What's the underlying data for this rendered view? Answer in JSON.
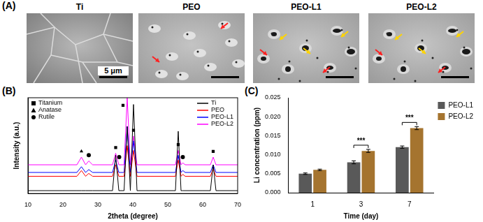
{
  "panel_a": {
    "title": "(A)",
    "images": [
      "Ti",
      "PEO",
      "PEO-L1",
      "PEO-L2"
    ],
    "scale_bar": "5 μm"
  },
  "chart_data": [
    {
      "type": "line",
      "title": "(B)",
      "x_label": "2theta (degree)",
      "y_label": "Intensity (a.u.)",
      "xlim": [
        10,
        70
      ],
      "xticks": [
        10,
        20,
        30,
        40,
        50,
        60,
        70
      ],
      "ylim": [
        0,
        100
      ],
      "tick_labels": "x",
      "grid": false,
      "legend": "top-right",
      "x": [
        10,
        15,
        20,
        24,
        25.3,
        26.5,
        27.4,
        28.5,
        33,
        34.2,
        35.1,
        36,
        37.5,
        38.4,
        39.3,
        40.2,
        41.2,
        45,
        50,
        52.2,
        53,
        53.8,
        54.3,
        55,
        60,
        62.2,
        63,
        63.8,
        65,
        70
      ],
      "series": [
        {
          "name": "Ti",
          "type": "line",
          "color": "#000000",
          "values": [
            3,
            3,
            3,
            3,
            3,
            3,
            3,
            3,
            3,
            3,
            40,
            3,
            3,
            70,
            3,
            93,
            3,
            3,
            3,
            3,
            65,
            3,
            3,
            3,
            3,
            3,
            30,
            3,
            3,
            3
          ]
        },
        {
          "name": "PEO",
          "type": "line",
          "color": "#ff0000",
          "values": [
            18,
            18,
            18,
            18,
            24,
            18,
            21,
            18,
            18,
            18,
            30,
            18,
            18,
            50,
            18,
            45,
            18,
            18,
            18,
            18,
            35,
            18,
            20,
            18,
            18,
            18,
            26,
            18,
            18,
            18
          ]
        },
        {
          "name": "PEO-L1",
          "type": "line",
          "color": "#0000ff",
          "values": [
            22,
            22,
            22,
            22,
            28,
            22,
            25,
            22,
            22,
            22,
            35,
            22,
            22,
            70,
            22,
            55,
            22,
            22,
            22,
            22,
            40,
            22,
            24,
            22,
            22,
            22,
            30,
            22,
            22,
            22
          ]
        },
        {
          "name": "PEO-L2",
          "type": "line",
          "color": "#ff00ff",
          "values": [
            30,
            30,
            30,
            30,
            38,
            30,
            34,
            30,
            30,
            30,
            42,
            30,
            30,
            100,
            30,
            60,
            30,
            30,
            30,
            30,
            45,
            30,
            32,
            30,
            30,
            30,
            38,
            30,
            30,
            30
          ]
        },
        {
          "name": "Titanium",
          "type": "scatter",
          "marker": "square",
          "color": "#000000",
          "x": [
            35.1,
            37.2,
            40.2,
            53,
            63
          ],
          "values": [
            48,
            92,
            66,
            51,
            44
          ]
        },
        {
          "name": "Anatase",
          "type": "scatter",
          "marker": "triangle",
          "color": "#000000",
          "x": [
            25.3
          ],
          "values": [
            44
          ]
        },
        {
          "name": "Rutile",
          "type": "scatter",
          "marker": "circle",
          "color": "#000000",
          "x": [
            27.4,
            36.1,
            54.3
          ],
          "values": [
            40,
            38,
            38
          ]
        }
      ]
    },
    {
      "type": "bar",
      "title": "(C)",
      "x_label": "Time (day)",
      "y_label": "Li concentration (ppm)",
      "categories": [
        "1",
        "3",
        "7"
      ],
      "ylim": [
        0,
        0.025
      ],
      "yticks": [
        {
          "value": 0,
          "label": "0.000"
        },
        {
          "value": 0.005,
          "label": "0.005"
        },
        {
          "value": 0.01,
          "label": "0.010"
        },
        {
          "value": 0.015,
          "label": "0.015"
        },
        {
          "value": 0.02,
          "label": "0.020"
        },
        {
          "value": 0.025,
          "label": "0.025"
        }
      ],
      "grid": false,
      "legend": "top-right",
      "series": [
        {
          "name": "PEO-L1",
          "color": "#595959",
          "values": [
            0.005,
            0.008,
            0.012
          ],
          "errors": [
            0.0002,
            0.0004,
            0.0003
          ]
        },
        {
          "name": "PEO-L2",
          "color": "#a5742f",
          "values": [
            0.006,
            0.011,
            0.017
          ],
          "errors": [
            0.0002,
            0.0004,
            0.0004
          ]
        }
      ],
      "annotations": [
        {
          "category": "3",
          "text": "***"
        },
        {
          "category": "7",
          "text": "***"
        }
      ]
    }
  ]
}
